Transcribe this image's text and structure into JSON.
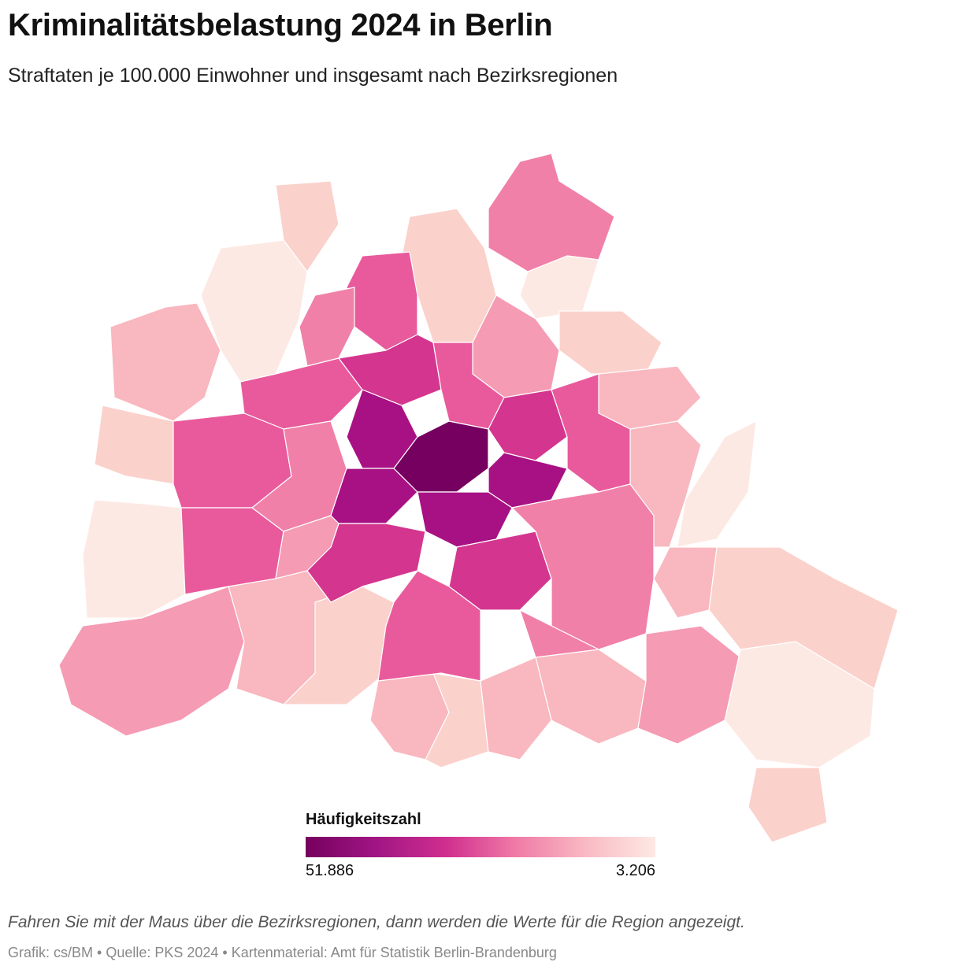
{
  "header": {
    "title": "Kriminalitätsbelastung 2024 in Berlin",
    "subtitle": "Straftaten je 100.000 Einwohner und insgesamt nach Bezirksregionen"
  },
  "legend": {
    "title": "Häufigkeitszahl",
    "max_label": "51.886",
    "min_label": "3.206",
    "color_high": "#76005f",
    "color_low": "#fde9e3"
  },
  "footer": {
    "hint": "Fahren Sie mit der Maus über die Bezirksregionen, dann werden die Werte für die Region angezeigt.",
    "credits": "Grafik: cs/BM • Quelle: PKS 2024 • Kartenmaterial: Amt für Statistik Berlin-Brandenburg"
  },
  "palette": [
    "#fde9e3",
    "#fbd1cc",
    "#f9b7bf",
    "#f59bb4",
    "#f080a8",
    "#e95a9c",
    "#d4358e",
    "#a81184",
    "#76005f"
  ]
}
